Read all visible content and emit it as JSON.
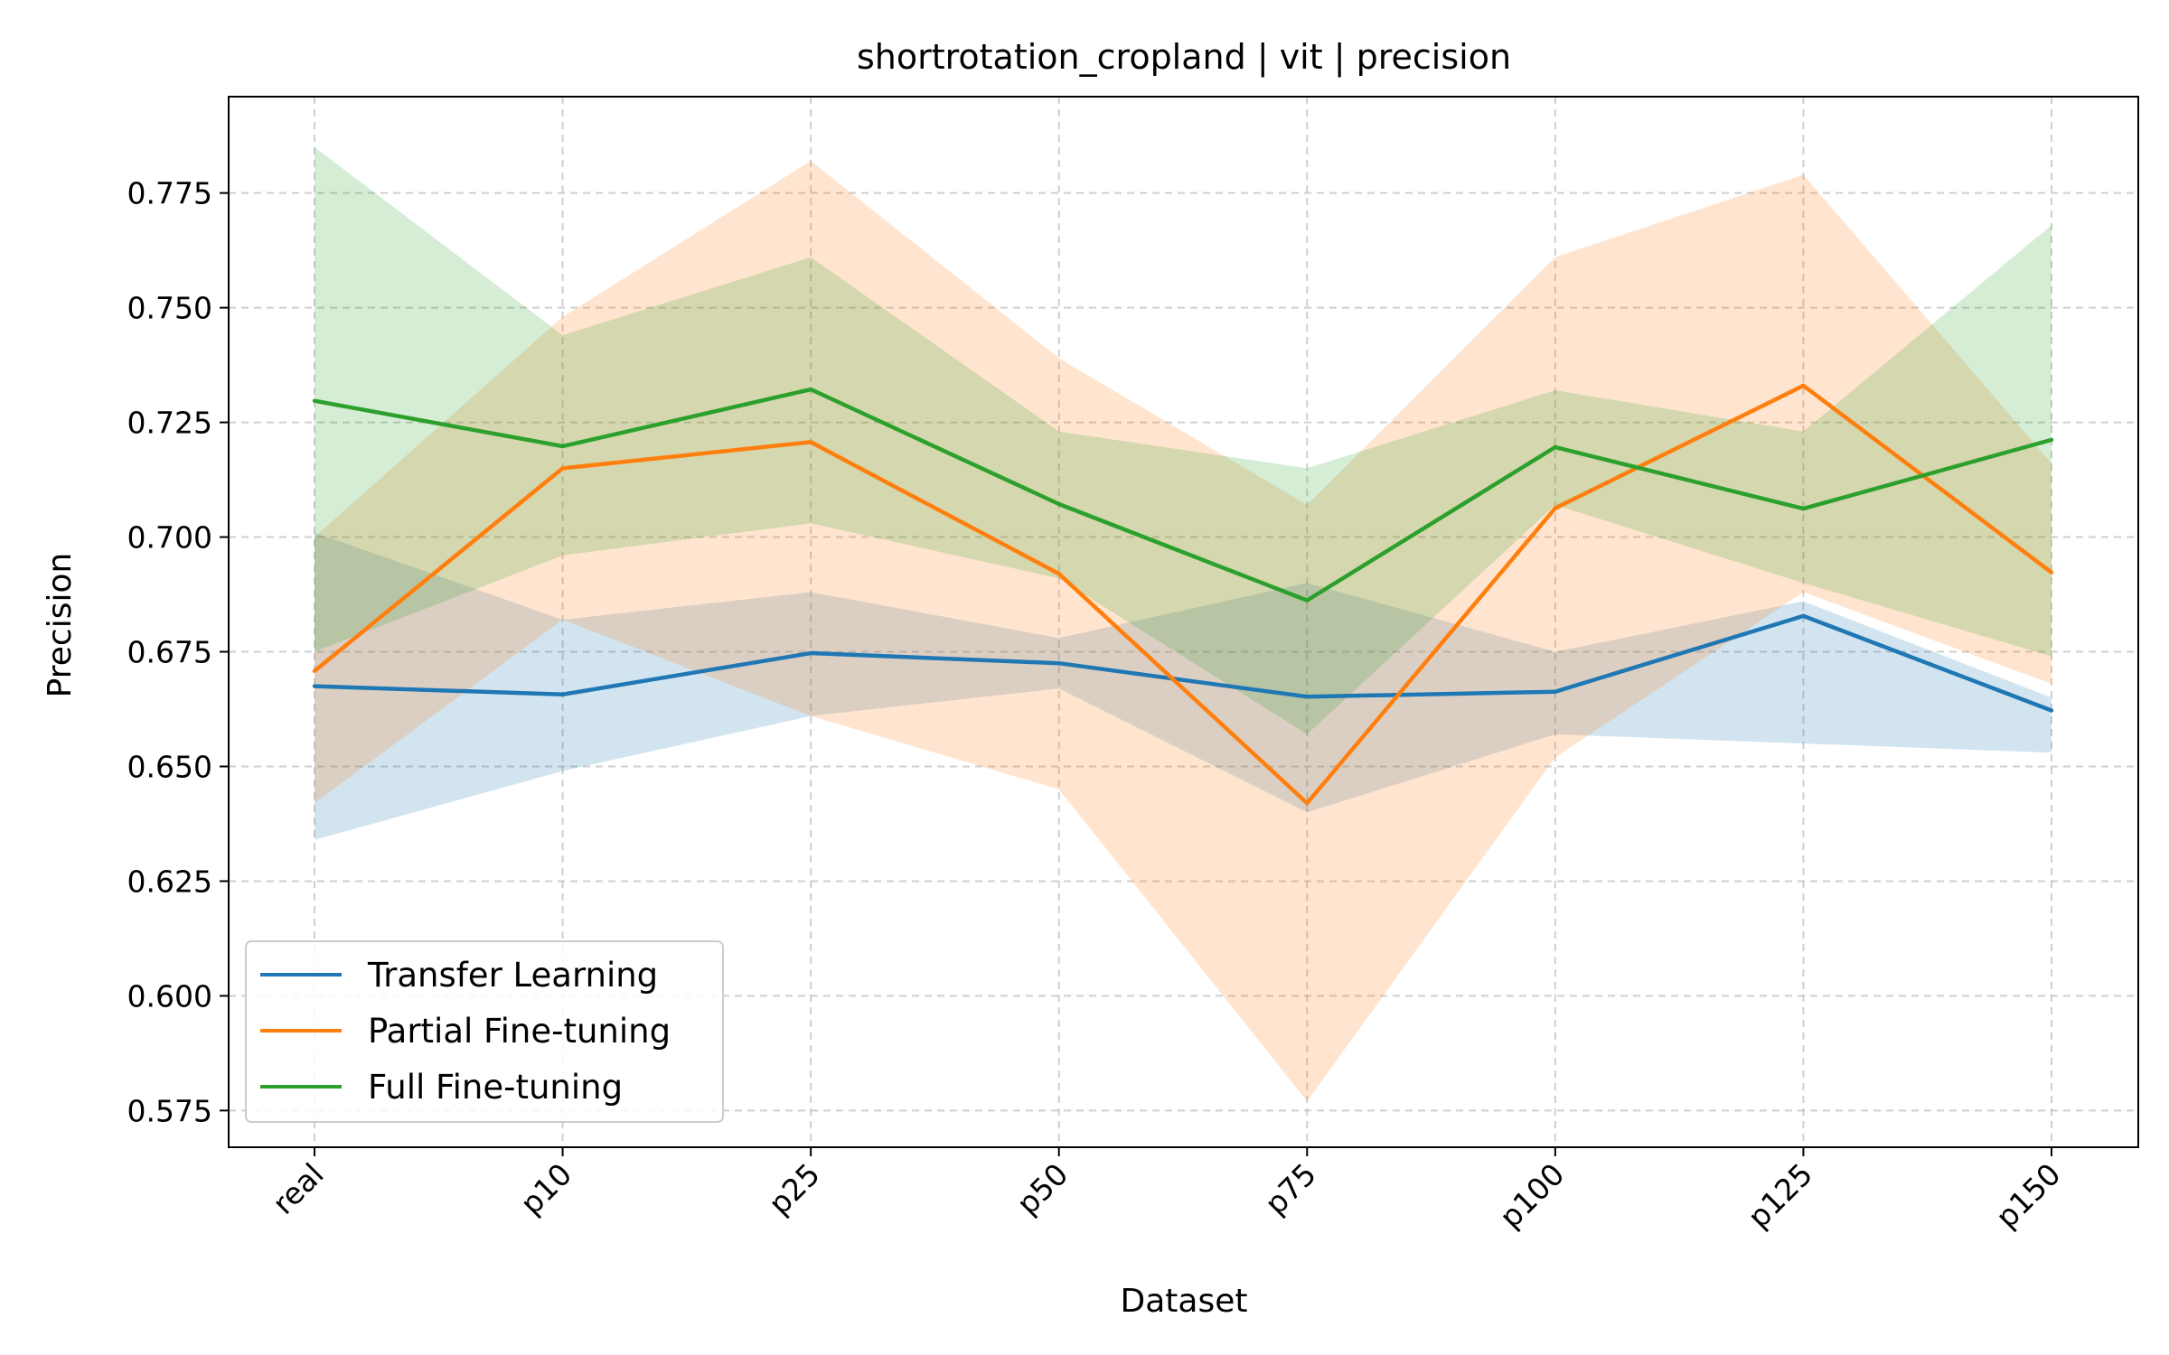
{
  "chart_data": {
    "type": "line",
    "title": "shortrotation_cropland | vit | precision",
    "xlabel": "Dataset",
    "ylabel": "Precision",
    "categories": [
      "real",
      "p10",
      "p25",
      "p50",
      "p75",
      "p100",
      "p125",
      "p150"
    ],
    "ylim": [
      0.567,
      0.796
    ],
    "yticks": [
      0.575,
      0.6,
      0.625,
      0.65,
      0.675,
      0.7,
      0.725,
      0.75,
      0.775
    ],
    "ytick_labels": [
      "0.575",
      "0.600",
      "0.625",
      "0.650",
      "0.675",
      "0.700",
      "0.725",
      "0.750",
      "0.775"
    ],
    "grid": true,
    "legend_position": "lower-left",
    "series": [
      {
        "name": "Transfer Learning",
        "color": "#1f77b4",
        "values": [
          0.6675,
          0.6657,
          0.6747,
          0.6725,
          0.6652,
          0.6663,
          0.6828,
          0.6622
        ],
        "lower": [
          0.634,
          0.649,
          0.661,
          0.667,
          0.64,
          0.657,
          0.655,
          0.653
        ],
        "upper": [
          0.701,
          0.682,
          0.688,
          0.678,
          0.69,
          0.675,
          0.686,
          0.665
        ]
      },
      {
        "name": "Partial Fine-tuning",
        "color": "#ff7f0e",
        "values": [
          0.6708,
          0.715,
          0.7207,
          0.692,
          0.642,
          0.7063,
          0.733,
          0.6923
        ],
        "lower": [
          0.642,
          0.682,
          0.661,
          0.645,
          0.577,
          0.652,
          0.688,
          0.668
        ],
        "upper": [
          0.7,
          0.748,
          0.782,
          0.739,
          0.707,
          0.761,
          0.779,
          0.716
        ]
      },
      {
        "name": "Full Fine-tuning",
        "color": "#2ca02c",
        "values": [
          0.7297,
          0.7198,
          0.7322,
          0.7072,
          0.6862,
          0.7196,
          0.7062,
          0.7212
        ],
        "lower": [
          0.675,
          0.696,
          0.703,
          0.691,
          0.657,
          0.707,
          0.69,
          0.674
        ],
        "upper": [
          0.785,
          0.744,
          0.761,
          0.723,
          0.715,
          0.732,
          0.723,
          0.768
        ]
      }
    ]
  }
}
